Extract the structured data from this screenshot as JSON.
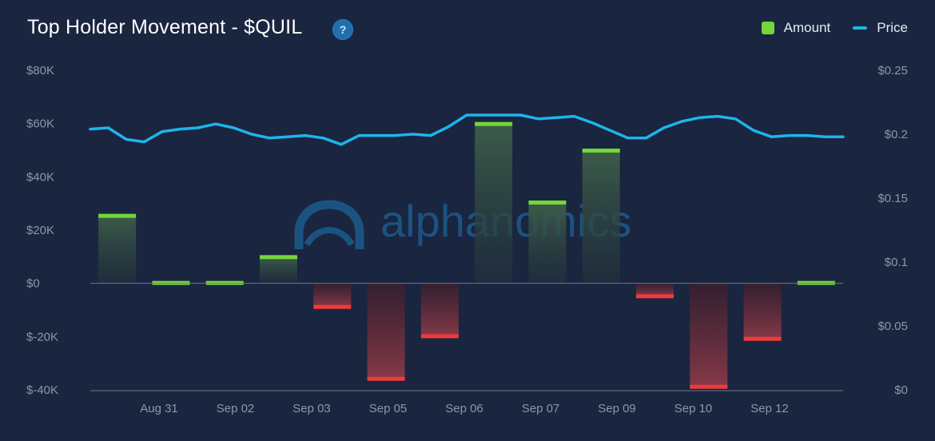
{
  "header": {
    "title": "Top Holder Movement - $QUIL",
    "help_icon": "?"
  },
  "legend": {
    "amount_label": "Amount",
    "price_label": "Price"
  },
  "watermark": {
    "text": "alphanomics"
  },
  "colors": {
    "background": "#1a2540",
    "positive_bar": "#74d63a",
    "negative_bar": "#ef3b3b",
    "price_line": "#1fb4ec",
    "baseline": "#8c97ab"
  },
  "chart_data": {
    "type": "bar",
    "title": "Top Holder Movement - $QUIL",
    "x_tick_labels": [
      "Aug 31",
      "Sep 02",
      "Sep 03",
      "Sep 05",
      "Sep 06",
      "Sep 07",
      "Sep 09",
      "Sep 10",
      "Sep 12"
    ],
    "y_left": {
      "ticks": [
        "$80K",
        "$60K",
        "$40K",
        "$20K",
        "$0",
        "$-20K",
        "$-40K"
      ],
      "range": [
        -40000,
        80000
      ]
    },
    "y_right": {
      "ticks": [
        "$0.25",
        "$0.2",
        "$0.15",
        "$0.1",
        "$0.05",
        "$0"
      ],
      "range": [
        0,
        0.25
      ]
    },
    "grid": false,
    "legend_position": "top-right",
    "series": [
      {
        "name": "Amount",
        "type": "bar",
        "values": [
          25500,
          0,
          0,
          10000,
          -9000,
          -36000,
          -20000,
          60000,
          30500,
          50000,
          -5000,
          -39000,
          -21000,
          0
        ]
      },
      {
        "name": "Price",
        "type": "line",
        "values": [
          0.204,
          0.205,
          0.196,
          0.194,
          0.202,
          0.204,
          0.205,
          0.208,
          0.205,
          0.2,
          0.197,
          0.198,
          0.199,
          0.197,
          0.192,
          0.199,
          0.199,
          0.199,
          0.2,
          0.199,
          0.206,
          0.215,
          0.215,
          0.215,
          0.215,
          0.212,
          0.213,
          0.214,
          0.209,
          0.203,
          0.197,
          0.197,
          0.205,
          0.21,
          0.213,
          0.214,
          0.212,
          0.203,
          0.198,
          0.199,
          0.199,
          0.198,
          0.198
        ]
      }
    ]
  }
}
